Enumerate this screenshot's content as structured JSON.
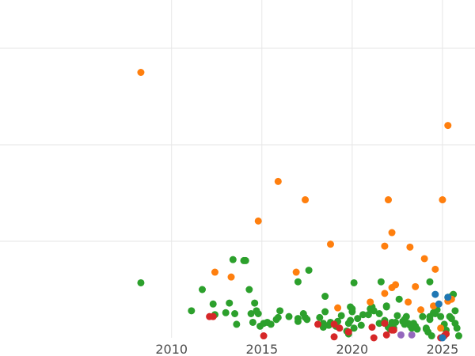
{
  "chart_data": {
    "type": "scatter",
    "title": "",
    "xlabel": "",
    "ylabel": "",
    "xlim": [
      2000.5,
      2026.8
    ],
    "ylim": [
      0,
      350
    ],
    "xticks": [
      2010,
      2015,
      2020,
      2025
    ],
    "xtick_labels": [
      "2010",
      "2015",
      "2020",
      "2025"
    ],
    "yticks": [
      100,
      200,
      300
    ],
    "grid": true,
    "colors": {
      "blue": "#1f77b4",
      "orange": "#ff7f0e",
      "green": "#2ca02c",
      "red": "#d62728",
      "purple": "#9467bd",
      "grid": "#e6e6e6",
      "tick_text": "#4d4d4d"
    },
    "series": [
      {
        "color_key": "green",
        "points": [
          [
            2008.3,
            57
          ],
          [
            2011.1,
            28
          ],
          [
            2011.7,
            50
          ],
          [
            2012.3,
            35
          ],
          [
            2012.4,
            24
          ],
          [
            2013.0,
            26
          ],
          [
            2013.2,
            36
          ],
          [
            2013.4,
            81
          ],
          [
            2013.5,
            25
          ],
          [
            2013.6,
            14
          ],
          [
            2014.0,
            80
          ],
          [
            2014.1,
            80
          ],
          [
            2014.3,
            50
          ],
          [
            2014.4,
            25
          ],
          [
            2014.5,
            16
          ],
          [
            2014.6,
            36
          ],
          [
            2014.7,
            28
          ],
          [
            2014.8,
            25
          ],
          [
            2014.9,
            12
          ],
          [
            2015.1,
            15
          ],
          [
            2015.3,
            16
          ],
          [
            2015.5,
            14
          ],
          [
            2015.8,
            19
          ],
          [
            2015.9,
            21
          ],
          [
            2016.0,
            28
          ],
          [
            2016.5,
            22
          ],
          [
            2017.0,
            17
          ],
          [
            2017.0,
            20
          ],
          [
            2017.0,
            58
          ],
          [
            2017.3,
            25
          ],
          [
            2017.4,
            21
          ],
          [
            2017.5,
            19
          ],
          [
            2017.6,
            70
          ],
          [
            2018.2,
            21
          ],
          [
            2018.4,
            15
          ],
          [
            2018.4,
            11
          ],
          [
            2018.5,
            43
          ],
          [
            2018.5,
            27
          ],
          [
            2018.7,
            13
          ],
          [
            2018.8,
            16
          ],
          [
            2019.1,
            12
          ],
          [
            2019.2,
            17
          ],
          [
            2019.4,
            23
          ],
          [
            2019.7,
            7
          ],
          [
            2019.8,
            15
          ],
          [
            2019.8,
            4
          ],
          [
            2019.9,
            18
          ],
          [
            2019.9,
            32
          ],
          [
            2020.0,
            27
          ],
          [
            2020.0,
            30
          ],
          [
            2020.1,
            10
          ],
          [
            2020.1,
            57
          ],
          [
            2020.3,
            20
          ],
          [
            2020.5,
            13
          ],
          [
            2020.6,
            24
          ],
          [
            2020.9,
            24
          ],
          [
            2021.0,
            30
          ],
          [
            2021.1,
            32
          ],
          [
            2021.2,
            28
          ],
          [
            2021.5,
            15
          ],
          [
            2021.5,
            25
          ],
          [
            2021.6,
            58
          ],
          [
            2021.8,
            18
          ],
          [
            2021.9,
            33
          ],
          [
            2021.9,
            32
          ],
          [
            2022.0,
            11
          ],
          [
            2022.1,
            9
          ],
          [
            2022.2,
            16
          ],
          [
            2022.3,
            10
          ],
          [
            2022.4,
            16
          ],
          [
            2022.5,
            23
          ],
          [
            2022.6,
            40
          ],
          [
            2022.8,
            17
          ],
          [
            2022.9,
            19
          ],
          [
            2022.9,
            14
          ],
          [
            2023.0,
            22
          ],
          [
            2023.1,
            15
          ],
          [
            2023.2,
            13
          ],
          [
            2023.3,
            10
          ],
          [
            2023.4,
            15
          ],
          [
            2023.5,
            12
          ],
          [
            2023.6,
            9
          ],
          [
            2023.9,
            22
          ],
          [
            2024.1,
            10
          ],
          [
            2024.1,
            9
          ],
          [
            2024.2,
            6
          ],
          [
            2024.3,
            19
          ],
          [
            2024.3,
            22
          ],
          [
            2024.3,
            58
          ],
          [
            2024.4,
            2
          ],
          [
            2024.5,
            26
          ],
          [
            2024.6,
            25
          ],
          [
            2024.7,
            29
          ],
          [
            2024.9,
            22
          ],
          [
            2025.1,
            14
          ],
          [
            2025.2,
            8
          ],
          [
            2025.3,
            42
          ],
          [
            2025.4,
            22
          ],
          [
            2025.5,
            20
          ],
          [
            2025.5,
            43
          ],
          [
            2025.6,
            45
          ],
          [
            2025.7,
            28
          ],
          [
            2025.7,
            15
          ],
          [
            2025.8,
            10
          ],
          [
            2025.9,
            2
          ]
        ]
      },
      {
        "color_key": "orange",
        "points": [
          [
            2008.3,
            275
          ],
          [
            2012.4,
            68
          ],
          [
            2013.3,
            63
          ],
          [
            2014.8,
            121
          ],
          [
            2015.9,
            162
          ],
          [
            2016.9,
            68
          ],
          [
            2017.4,
            143
          ],
          [
            2018.8,
            97
          ],
          [
            2019.2,
            31
          ],
          [
            2021.0,
            37
          ],
          [
            2021.8,
            95
          ],
          [
            2021.8,
            46
          ],
          [
            2022.0,
            143
          ],
          [
            2022.2,
            52
          ],
          [
            2022.2,
            109
          ],
          [
            2022.4,
            55
          ],
          [
            2023.1,
            37
          ],
          [
            2023.2,
            94
          ],
          [
            2023.5,
            53
          ],
          [
            2023.8,
            29
          ],
          [
            2024.0,
            82
          ],
          [
            2024.5,
            33
          ],
          [
            2024.6,
            71
          ],
          [
            2024.9,
            10
          ],
          [
            2025.0,
            143
          ],
          [
            2025.2,
            4
          ],
          [
            2025.3,
            38
          ],
          [
            2025.3,
            220
          ],
          [
            2025.5,
            40
          ]
        ]
      },
      {
        "color_key": "red",
        "points": [
          [
            2012.1,
            22
          ],
          [
            2012.3,
            22
          ],
          [
            2015.1,
            2
          ],
          [
            2018.1,
            14
          ],
          [
            2019.0,
            14
          ],
          [
            2019.0,
            1
          ],
          [
            2019.3,
            10
          ],
          [
            2019.8,
            6
          ],
          [
            2021.1,
            11
          ],
          [
            2021.2,
            0
          ],
          [
            2021.8,
            15
          ],
          [
            2021.9,
            3
          ],
          [
            2022.2,
            8
          ],
          [
            2022.3,
            8
          ],
          [
            2024.9,
            0
          ],
          [
            2025.1,
            2
          ],
          [
            2025.2,
            4
          ]
        ]
      },
      {
        "color_key": "blue",
        "points": [
          [
            2024.6,
            45
          ],
          [
            2024.8,
            35
          ],
          [
            2025.0,
            0
          ],
          [
            2025.3,
            42
          ]
        ]
      },
      {
        "color_key": "purple",
        "points": [
          [
            2022.7,
            3
          ],
          [
            2023.3,
            3
          ]
        ]
      }
    ]
  }
}
